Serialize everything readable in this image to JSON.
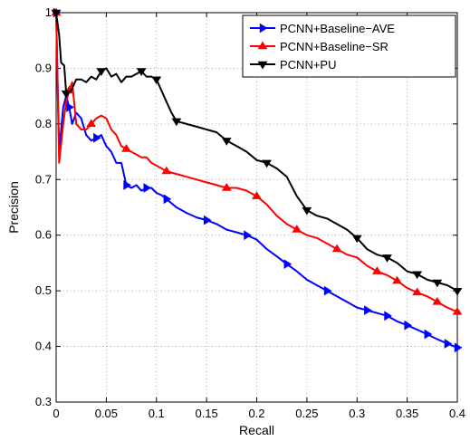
{
  "chart_data": {
    "type": "line",
    "xlabel": "Recall",
    "ylabel": "Precision",
    "xlim": [
      0,
      0.4
    ],
    "ylim": [
      0.3,
      1
    ],
    "grid": true,
    "grid_style": "dotted",
    "legend_position": "top-right",
    "x_ticks": [
      "0",
      "0.05",
      "0.1",
      "0.15",
      "0.2",
      "0.25",
      "0.3",
      "0.35",
      "0.4"
    ],
    "y_ticks": [
      "0.3",
      "0.4",
      "0.5",
      "0.6",
      "0.7",
      "0.8",
      "0.9",
      "1"
    ],
    "series": [
      {
        "name": "PCNN+Baseline−AVE",
        "color": "#0000ff",
        "marker": "triangle-right",
        "points": [
          [
            0.0,
            1.0
          ],
          [
            0.003,
            0.75
          ],
          [
            0.007,
            0.83
          ],
          [
            0.01,
            0.85
          ],
          [
            0.013,
            0.83
          ],
          [
            0.016,
            0.8
          ],
          [
            0.02,
            0.82
          ],
          [
            0.025,
            0.81
          ],
          [
            0.03,
            0.78
          ],
          [
            0.035,
            0.77
          ],
          [
            0.04,
            0.775
          ],
          [
            0.045,
            0.78
          ],
          [
            0.05,
            0.76
          ],
          [
            0.055,
            0.75
          ],
          [
            0.06,
            0.73
          ],
          [
            0.065,
            0.73
          ],
          [
            0.07,
            0.69
          ],
          [
            0.075,
            0.685
          ],
          [
            0.08,
            0.69
          ],
          [
            0.085,
            0.68
          ],
          [
            0.09,
            0.685
          ],
          [
            0.095,
            0.685
          ],
          [
            0.1,
            0.676
          ],
          [
            0.105,
            0.672
          ],
          [
            0.11,
            0.665
          ],
          [
            0.12,
            0.65
          ],
          [
            0.13,
            0.64
          ],
          [
            0.14,
            0.632
          ],
          [
            0.15,
            0.627
          ],
          [
            0.16,
            0.62
          ],
          [
            0.17,
            0.61
          ],
          [
            0.18,
            0.605
          ],
          [
            0.19,
            0.6
          ],
          [
            0.2,
            0.592
          ],
          [
            0.21,
            0.575
          ],
          [
            0.22,
            0.562
          ],
          [
            0.23,
            0.548
          ],
          [
            0.24,
            0.535
          ],
          [
            0.25,
            0.52
          ],
          [
            0.26,
            0.51
          ],
          [
            0.27,
            0.5
          ],
          [
            0.28,
            0.49
          ],
          [
            0.29,
            0.48
          ],
          [
            0.3,
            0.47
          ],
          [
            0.31,
            0.465
          ],
          [
            0.32,
            0.46
          ],
          [
            0.33,
            0.455
          ],
          [
            0.34,
            0.445
          ],
          [
            0.35,
            0.438
          ],
          [
            0.36,
            0.43
          ],
          [
            0.37,
            0.422
          ],
          [
            0.38,
            0.413
          ],
          [
            0.39,
            0.405
          ],
          [
            0.4,
            0.398
          ]
        ],
        "marker_indices": [
          0,
          4,
          10,
          16,
          20,
          24,
          28,
          32,
          36,
          40,
          44,
          46,
          48,
          50,
          52,
          53
        ]
      },
      {
        "name": "PCNN+Baseline−SR",
        "color": "#ff0000",
        "marker": "triangle-up",
        "points": [
          [
            0.0,
            1.0
          ],
          [
            0.003,
            0.73
          ],
          [
            0.007,
            0.8
          ],
          [
            0.01,
            0.84
          ],
          [
            0.013,
            0.86
          ],
          [
            0.016,
            0.875
          ],
          [
            0.02,
            0.8
          ],
          [
            0.025,
            0.79
          ],
          [
            0.03,
            0.79
          ],
          [
            0.035,
            0.8
          ],
          [
            0.04,
            0.81
          ],
          [
            0.045,
            0.815
          ],
          [
            0.05,
            0.81
          ],
          [
            0.055,
            0.79
          ],
          [
            0.06,
            0.78
          ],
          [
            0.065,
            0.76
          ],
          [
            0.07,
            0.755
          ],
          [
            0.075,
            0.75
          ],
          [
            0.08,
            0.745
          ],
          [
            0.085,
            0.74
          ],
          [
            0.09,
            0.74
          ],
          [
            0.095,
            0.73
          ],
          [
            0.1,
            0.725
          ],
          [
            0.105,
            0.72
          ],
          [
            0.11,
            0.715
          ],
          [
            0.12,
            0.71
          ],
          [
            0.13,
            0.705
          ],
          [
            0.14,
            0.7
          ],
          [
            0.15,
            0.695
          ],
          [
            0.16,
            0.69
          ],
          [
            0.17,
            0.685
          ],
          [
            0.18,
            0.685
          ],
          [
            0.19,
            0.68
          ],
          [
            0.2,
            0.67
          ],
          [
            0.21,
            0.655
          ],
          [
            0.22,
            0.635
          ],
          [
            0.23,
            0.62
          ],
          [
            0.24,
            0.61
          ],
          [
            0.25,
            0.6
          ],
          [
            0.26,
            0.595
          ],
          [
            0.27,
            0.585
          ],
          [
            0.28,
            0.575
          ],
          [
            0.29,
            0.565
          ],
          [
            0.3,
            0.56
          ],
          [
            0.31,
            0.545
          ],
          [
            0.32,
            0.535
          ],
          [
            0.33,
            0.528
          ],
          [
            0.34,
            0.518
          ],
          [
            0.35,
            0.505
          ],
          [
            0.36,
            0.497
          ],
          [
            0.37,
            0.49
          ],
          [
            0.38,
            0.48
          ],
          [
            0.39,
            0.47
          ],
          [
            0.4,
            0.462
          ]
        ],
        "marker_indices": [
          0,
          4,
          9,
          16,
          24,
          30,
          33,
          37,
          41,
          45,
          47,
          49,
          51,
          53
        ]
      },
      {
        "name": "PCNN+PU",
        "color": "#000000",
        "marker": "triangle-down",
        "points": [
          [
            0.0,
            1.0
          ],
          [
            0.003,
            0.96
          ],
          [
            0.005,
            0.91
          ],
          [
            0.008,
            0.905
          ],
          [
            0.01,
            0.855
          ],
          [
            0.015,
            0.86
          ],
          [
            0.02,
            0.88
          ],
          [
            0.025,
            0.88
          ],
          [
            0.03,
            0.875
          ],
          [
            0.035,
            0.885
          ],
          [
            0.04,
            0.88
          ],
          [
            0.045,
            0.895
          ],
          [
            0.05,
            0.9
          ],
          [
            0.055,
            0.885
          ],
          [
            0.06,
            0.89
          ],
          [
            0.065,
            0.875
          ],
          [
            0.07,
            0.885
          ],
          [
            0.075,
            0.885
          ],
          [
            0.08,
            0.89
          ],
          [
            0.085,
            0.895
          ],
          [
            0.09,
            0.885
          ],
          [
            0.095,
            0.885
          ],
          [
            0.1,
            0.88
          ],
          [
            0.105,
            0.86
          ],
          [
            0.11,
            0.84
          ],
          [
            0.115,
            0.82
          ],
          [
            0.12,
            0.805
          ],
          [
            0.13,
            0.8
          ],
          [
            0.14,
            0.795
          ],
          [
            0.15,
            0.79
          ],
          [
            0.16,
            0.785
          ],
          [
            0.17,
            0.77
          ],
          [
            0.18,
            0.76
          ],
          [
            0.19,
            0.75
          ],
          [
            0.2,
            0.735
          ],
          [
            0.21,
            0.73
          ],
          [
            0.22,
            0.72
          ],
          [
            0.23,
            0.705
          ],
          [
            0.24,
            0.67
          ],
          [
            0.25,
            0.645
          ],
          [
            0.26,
            0.635
          ],
          [
            0.27,
            0.63
          ],
          [
            0.28,
            0.62
          ],
          [
            0.29,
            0.61
          ],
          [
            0.3,
            0.595
          ],
          [
            0.31,
            0.575
          ],
          [
            0.32,
            0.565
          ],
          [
            0.33,
            0.56
          ],
          [
            0.34,
            0.55
          ],
          [
            0.35,
            0.535
          ],
          [
            0.36,
            0.53
          ],
          [
            0.37,
            0.52
          ],
          [
            0.38,
            0.515
          ],
          [
            0.39,
            0.51
          ],
          [
            0.4,
            0.5
          ]
        ],
        "marker_indices": [
          0,
          4,
          11,
          19,
          22,
          26,
          31,
          35,
          39,
          44,
          47,
          50,
          52,
          54
        ]
      }
    ]
  }
}
